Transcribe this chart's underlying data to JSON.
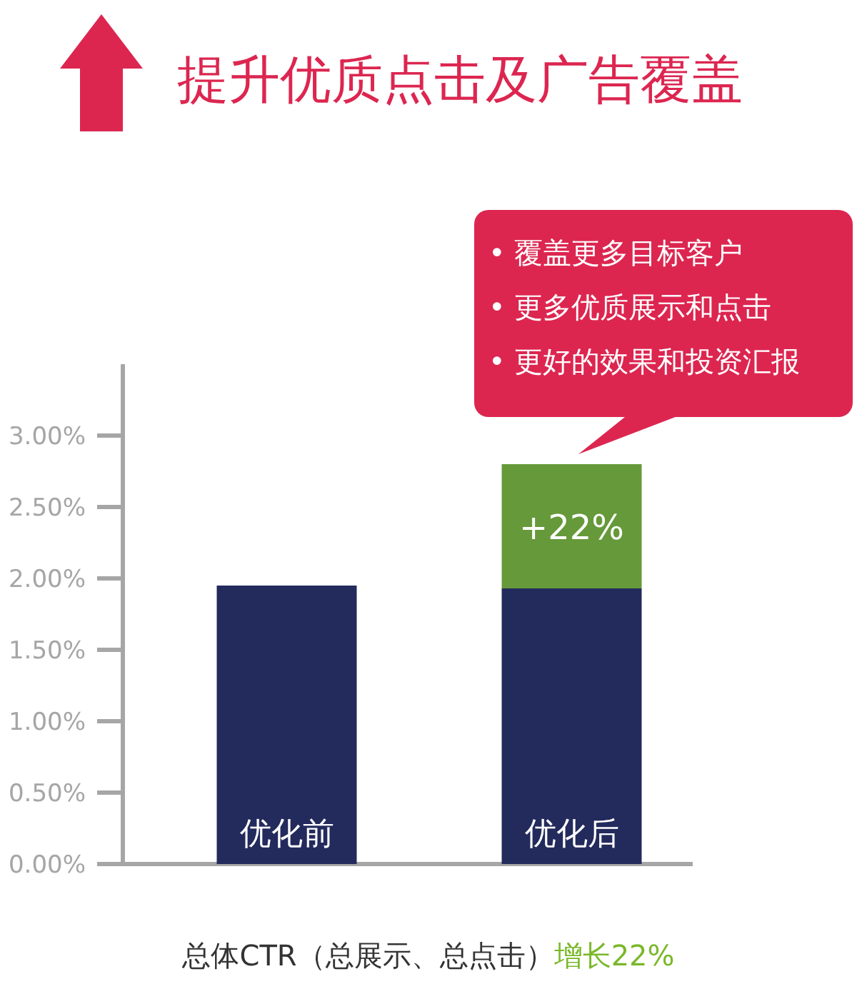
{
  "chart_data": {
    "type": "bar",
    "title": "提升优质点击及广告覆盖",
    "xlabel": "总体CTR（总展示、总点击）",
    "stacked": true,
    "categories": [
      "优化前",
      "优化后"
    ],
    "series": [
      {
        "color": "#232a5c",
        "values": [
          1.95,
          1.93
        ]
      },
      {
        "color": "#66993a",
        "values": [
          null,
          0.87
        ]
      }
    ],
    "ylim": [
      0,
      3.5
    ],
    "yticks": [
      {
        "value": 0,
        "label": "0.00%"
      },
      {
        "value": 0.5,
        "label": "0.50%"
      },
      {
        "value": 1,
        "label": "1.00%"
      },
      {
        "value": 1.5,
        "label": "1.50%"
      },
      {
        "value": 2,
        "label": "2.00%"
      },
      {
        "value": 2.5,
        "label": "2.50%"
      },
      {
        "value": 3,
        "label": "3.00%"
      }
    ],
    "annotations": [
      "增长22%",
      "+22%",
      "• 覆盖更多目标客户",
      "• 更多优质展示和点击",
      "• 更好的效果和投资汇报"
    ]
  }
}
